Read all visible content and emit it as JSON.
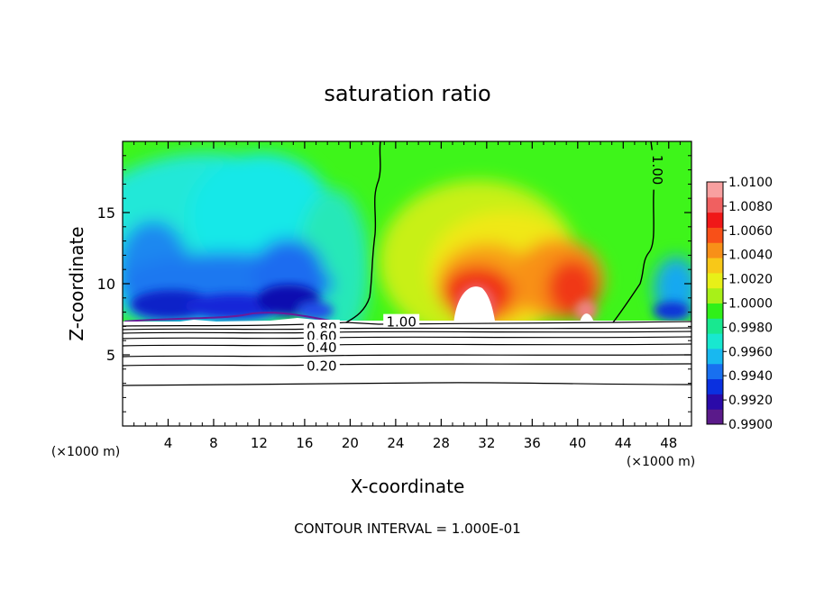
{
  "chart_data": {
    "type": "heatmap",
    "title": "saturation ratio",
    "xlabel": "X-coordinate",
    "ylabel": "Z-coordinate",
    "x_unit": "(×1000 m)",
    "y_unit": "(×1000 m)",
    "xlim": [
      0,
      50
    ],
    "ylim": [
      0,
      20
    ],
    "x_ticks": [
      4,
      8,
      12,
      16,
      20,
      24,
      28,
      32,
      36,
      40,
      44,
      48
    ],
    "y_ticks": [
      5,
      10,
      15
    ],
    "footer": "CONTOUR INTERVAL = 1.000E-01",
    "colorbar": {
      "min": 0.99,
      "max": 1.01,
      "labels": [
        "1.0100",
        "1.0080",
        "1.0060",
        "1.0040",
        "1.0020",
        "1.0000",
        "0.9980",
        "0.9960",
        "0.9940",
        "0.9920",
        "0.9900"
      ],
      "colors": [
        "#5a1a8a",
        "#2a0aa8",
        "#0a30e0",
        "#1870f0",
        "#18b8f0",
        "#18e8d0",
        "#18e890",
        "#30f018",
        "#a8f018",
        "#e8f018",
        "#f8c818",
        "#f89018",
        "#f85018",
        "#f01818",
        "#f06060",
        "#f8a0a0"
      ]
    },
    "contour_labels": [
      {
        "text": "1.00",
        "x": 24.5,
        "z": 7.3
      },
      {
        "text": "1.00",
        "x": 47.0,
        "z": 18.0
      },
      {
        "text": "0.80",
        "x": 17.5,
        "z": 6.9
      },
      {
        "text": "0.60",
        "x": 17.5,
        "z": 6.3
      },
      {
        "text": "0.40",
        "x": 17.5,
        "z": 5.5
      },
      {
        "text": "0.20",
        "x": 17.5,
        "z": 4.2
      }
    ]
  }
}
